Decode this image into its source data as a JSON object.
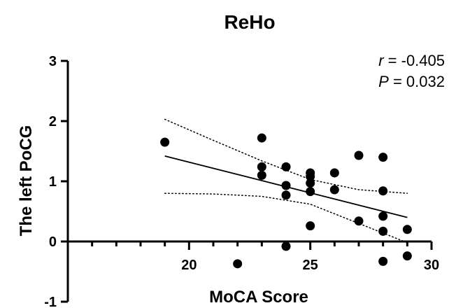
{
  "chart_data": {
    "type": "scatter",
    "title": "ReHo",
    "xlabel": "MoCA Score",
    "ylabel": "The left PoCG",
    "xlim": [
      15,
      30
    ],
    "ylim": [
      -1,
      3
    ],
    "x_ticks": [
      "20",
      "25",
      "30"
    ],
    "y_ticks": [
      "-1",
      "0",
      "1",
      "2",
      "3"
    ],
    "x_tick_values": [
      20,
      25,
      30
    ],
    "y_tick_values": [
      -1,
      0,
      1,
      2,
      3
    ],
    "grid": false,
    "annotation": {
      "r_symbol": "r",
      "r_value": " = -0.405",
      "p_symbol": "P",
      "p_value": " = 0.032"
    },
    "points": [
      {
        "x": 19,
        "y": 1.65
      },
      {
        "x": 22,
        "y": -0.37
      },
      {
        "x": 23,
        "y": 1.72
      },
      {
        "x": 23,
        "y": 1.24
      },
      {
        "x": 23,
        "y": 1.1
      },
      {
        "x": 24,
        "y": 1.24
      },
      {
        "x": 24,
        "y": 0.93
      },
      {
        "x": 24,
        "y": 0.77
      },
      {
        "x": 24,
        "y": -0.08
      },
      {
        "x": 25,
        "y": 1.14
      },
      {
        "x": 25,
        "y": 1.08
      },
      {
        "x": 25,
        "y": 0.97
      },
      {
        "x": 25,
        "y": 0.83
      },
      {
        "x": 25,
        "y": 0.26
      },
      {
        "x": 26,
        "y": 1.14
      },
      {
        "x": 26,
        "y": 0.86
      },
      {
        "x": 27,
        "y": 1.43
      },
      {
        "x": 27,
        "y": 0.34
      },
      {
        "x": 28,
        "y": 1.4
      },
      {
        "x": 28,
        "y": 0.84
      },
      {
        "x": 28,
        "y": 0.42
      },
      {
        "x": 28,
        "y": 0.17
      },
      {
        "x": 28,
        "y": -0.33
      },
      {
        "x": 29,
        "y": 0.2
      },
      {
        "x": 29,
        "y": -0.24
      }
    ],
    "regression_line": [
      {
        "x": 19,
        "y": 1.42
      },
      {
        "x": 29,
        "y": 0.4
      }
    ],
    "ci_upper": [
      {
        "x": 19,
        "y": 2.03
      },
      {
        "x": 21,
        "y": 1.68
      },
      {
        "x": 23,
        "y": 1.34
      },
      {
        "x": 25,
        "y": 1.03
      },
      {
        "x": 27,
        "y": 0.86
      },
      {
        "x": 29,
        "y": 0.8
      }
    ],
    "ci_lower": [
      {
        "x": 19,
        "y": 0.8
      },
      {
        "x": 21,
        "y": 0.79
      },
      {
        "x": 23,
        "y": 0.75
      },
      {
        "x": 25,
        "y": 0.62
      },
      {
        "x": 27,
        "y": 0.3
      },
      {
        "x": 29,
        "y": -0.02
      }
    ],
    "colors": {
      "points": "#000000",
      "line": "#000000",
      "ci": "#000000"
    }
  }
}
